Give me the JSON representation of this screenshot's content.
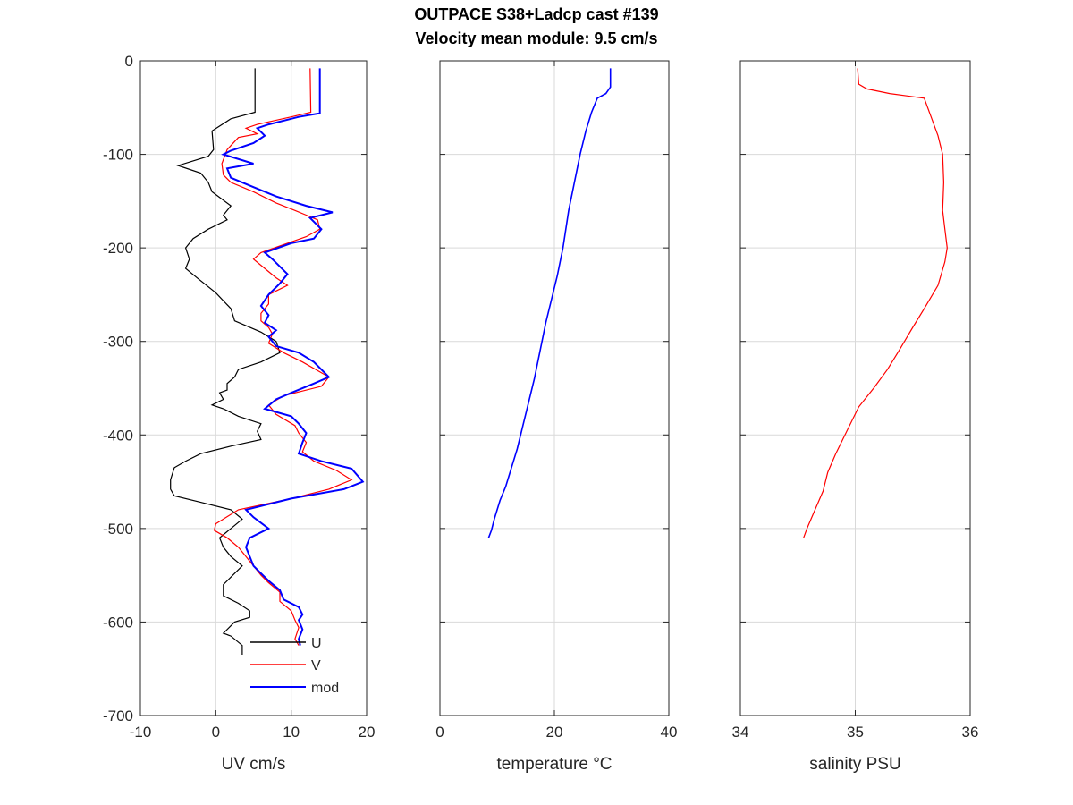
{
  "title": {
    "line1": "OUTPACE S38+Ladcp cast #139",
    "line2": "Velocity mean module:  9.5 cm/s"
  },
  "colors": {
    "U": "#000000",
    "V": "#ff0000",
    "mod": "#0000ff",
    "temperature": "#0000ff",
    "salinity": "#ff0000",
    "grid": "#d9d9d9"
  },
  "chart_data": [
    {
      "type": "line",
      "xlabel": "UV cm/s",
      "ylabel": "",
      "xlim": [
        -10,
        20
      ],
      "ylim": [
        -700,
        0
      ],
      "xticks": [
        -10,
        0,
        10,
        20
      ],
      "yticks": [
        0,
        -100,
        -200,
        -300,
        -400,
        -500,
        -600,
        -700
      ],
      "grid": true,
      "legend": "bottom-center",
      "series": [
        {
          "name": "U",
          "color": "#000000",
          "points": [
            [
              5.2,
              -8
            ],
            [
              5.2,
              -55
            ],
            [
              2,
              -62
            ],
            [
              -0.5,
              -75
            ],
            [
              -0.3,
              -95
            ],
            [
              -1,
              -102
            ],
            [
              -5,
              -112
            ],
            [
              -2,
              -120
            ],
            [
              -1,
              -130
            ],
            [
              -0.5,
              -140
            ],
            [
              2,
              -155
            ],
            [
              1,
              -165
            ],
            [
              1.5,
              -170
            ],
            [
              -1,
              -180
            ],
            [
              -3,
              -190
            ],
            [
              -4,
              -200
            ],
            [
              -3.5,
              -212
            ],
            [
              -4,
              -222
            ],
            [
              -2.5,
              -232
            ],
            [
              0,
              -248
            ],
            [
              2,
              -265
            ],
            [
              2.5,
              -278
            ],
            [
              6,
              -290
            ],
            [
              8,
              -300
            ],
            [
              8.5,
              -312
            ],
            [
              6,
              -322
            ],
            [
              3,
              -330
            ],
            [
              2.5,
              -338
            ],
            [
              1.5,
              -345
            ],
            [
              1.5,
              -352
            ],
            [
              0.5,
              -355
            ],
            [
              1,
              -362
            ],
            [
              -0.5,
              -368
            ],
            [
              1,
              -372
            ],
            [
              3,
              -380
            ],
            [
              6,
              -388
            ],
            [
              5.5,
              -396
            ],
            [
              6,
              -405
            ],
            [
              2,
              -412
            ],
            [
              -2,
              -420
            ],
            [
              -4,
              -428
            ],
            [
              -5.5,
              -435
            ],
            [
              -6,
              -448
            ],
            [
              -6,
              -458
            ],
            [
              -5.5,
              -465
            ],
            [
              -2,
              -472
            ],
            [
              2,
              -480
            ],
            [
              3.5,
              -490
            ],
            [
              2,
              -500
            ],
            [
              0.5,
              -510
            ],
            [
              1,
              -520
            ],
            [
              2,
              -530
            ],
            [
              3.5,
              -540
            ],
            [
              2.5,
              -548
            ],
            [
              1,
              -560
            ],
            [
              1,
              -572
            ],
            [
              3,
              -580
            ],
            [
              4.5,
              -588
            ],
            [
              4.5,
              -595
            ],
            [
              2.5,
              -600
            ],
            [
              1,
              -612
            ],
            [
              2,
              -615
            ],
            [
              3.5,
              -625
            ],
            [
              3.5,
              -635
            ]
          ]
        },
        {
          "name": "V",
          "color": "#ff0000",
          "points": [
            [
              12.5,
              -8
            ],
            [
              12.6,
              -55
            ],
            [
              10,
              -60
            ],
            [
              5.5,
              -68
            ],
            [
              4,
              -72
            ],
            [
              5.5,
              -78
            ],
            [
              3,
              -82
            ],
            [
              1.5,
              -95
            ],
            [
              0.8,
              -110
            ],
            [
              1,
              -122
            ],
            [
              2,
              -130
            ],
            [
              5,
              -140
            ],
            [
              8,
              -152
            ],
            [
              10.5,
              -160
            ],
            [
              12,
              -165
            ],
            [
              13.5,
              -170
            ],
            [
              13.8,
              -180
            ],
            [
              12,
              -188
            ],
            [
              9.5,
              -195
            ],
            [
              6,
              -205
            ],
            [
              5,
              -212
            ],
            [
              6.5,
              -222
            ],
            [
              8,
              -232
            ],
            [
              9.5,
              -240
            ],
            [
              7,
              -250
            ],
            [
              7,
              -260
            ],
            [
              6,
              -270
            ],
            [
              6,
              -278
            ],
            [
              7,
              -285
            ],
            [
              7.5,
              -292
            ],
            [
              7,
              -302
            ],
            [
              9,
              -312
            ],
            [
              11.5,
              -322
            ],
            [
              15,
              -338
            ],
            [
              14,
              -348
            ],
            [
              9,
              -358
            ],
            [
              7,
              -368
            ],
            [
              8,
              -378
            ],
            [
              10.5,
              -390
            ],
            [
              11,
              -398
            ],
            [
              12,
              -408
            ],
            [
              11.5,
              -418
            ],
            [
              13,
              -428
            ],
            [
              16,
              -438
            ],
            [
              18,
              -448
            ],
            [
              15,
              -458
            ],
            [
              10,
              -468
            ],
            [
              3,
              -480
            ],
            [
              0,
              -495
            ],
            [
              -0.2,
              -502
            ],
            [
              1.5,
              -510
            ],
            [
              3,
              -520
            ],
            [
              4,
              -530
            ],
            [
              5,
              -540
            ],
            [
              6,
              -550
            ],
            [
              7,
              -558
            ],
            [
              8.5,
              -568
            ],
            [
              8.5,
              -578
            ],
            [
              10,
              -588
            ],
            [
              10.5,
              -598
            ],
            [
              11,
              -606
            ],
            [
              10.5,
              -618
            ],
            [
              11,
              -625
            ]
          ]
        },
        {
          "name": "mod",
          "color": "#0000ff",
          "points": [
            [
              13.8,
              -8
            ],
            [
              13.8,
              -56
            ],
            [
              11,
              -60
            ],
            [
              7,
              -68
            ],
            [
              5.5,
              -72
            ],
            [
              6.5,
              -80
            ],
            [
              5,
              -88
            ],
            [
              2,
              -96
            ],
            [
              1,
              -100
            ],
            [
              5,
              -110
            ],
            [
              1.5,
              -115
            ],
            [
              2,
              -125
            ],
            [
              5,
              -135
            ],
            [
              8,
              -145
            ],
            [
              12,
              -155
            ],
            [
              15.5,
              -162
            ],
            [
              12.5,
              -168
            ],
            [
              14,
              -180
            ],
            [
              13,
              -190
            ],
            [
              10,
              -195
            ],
            [
              6.5,
              -205
            ],
            [
              7.5,
              -212
            ],
            [
              9.5,
              -228
            ],
            [
              8.5,
              -238
            ],
            [
              7,
              -250
            ],
            [
              6,
              -262
            ],
            [
              7,
              -272
            ],
            [
              6.5,
              -280
            ],
            [
              8,
              -288
            ],
            [
              7,
              -295
            ],
            [
              8,
              -305
            ],
            [
              11,
              -312
            ],
            [
              13,
              -322
            ],
            [
              15,
              -338
            ],
            [
              13,
              -345
            ],
            [
              10,
              -355
            ],
            [
              8,
              -362
            ],
            [
              6.5,
              -372
            ],
            [
              10,
              -380
            ],
            [
              11,
              -388
            ],
            [
              12,
              -398
            ],
            [
              11.5,
              -408
            ],
            [
              11,
              -420
            ],
            [
              14,
              -428
            ],
            [
              18,
              -436
            ],
            [
              19.5,
              -450
            ],
            [
              17,
              -458
            ],
            [
              10,
              -468
            ],
            [
              4,
              -480
            ],
            [
              5,
              -488
            ],
            [
              7,
              -500
            ],
            [
              4.5,
              -510
            ],
            [
              4,
              -520
            ],
            [
              4.5,
              -530
            ],
            [
              5,
              -540
            ],
            [
              6,
              -548
            ],
            [
              7,
              -556
            ],
            [
              8.5,
              -566
            ],
            [
              9,
              -576
            ],
            [
              11,
              -584
            ],
            [
              11.5,
              -592
            ],
            [
              11,
              -598
            ],
            [
              11.5,
              -608
            ],
            [
              11,
              -618
            ],
            [
              11.2,
              -625
            ]
          ]
        }
      ]
    },
    {
      "type": "line",
      "xlabel": "temperature °C",
      "xlim": [
        0,
        40
      ],
      "ylim": [
        -700,
        0
      ],
      "xticks": [
        0,
        20,
        40
      ],
      "yticks": [
        0,
        -100,
        -200,
        -300,
        -400,
        -500,
        -600,
        -700
      ],
      "grid": true,
      "series": [
        {
          "color": "#0000ff",
          "points": [
            [
              29.8,
              -8
            ],
            [
              29.8,
              -28
            ],
            [
              29,
              -35
            ],
            [
              27.5,
              -40
            ],
            [
              26.5,
              -55
            ],
            [
              25.5,
              -75
            ],
            [
              24.5,
              -100
            ],
            [
              23.5,
              -130
            ],
            [
              22.5,
              -160
            ],
            [
              21.5,
              -200
            ],
            [
              20.5,
              -230
            ],
            [
              19.5,
              -255
            ],
            [
              18.5,
              -280
            ],
            [
              17.5,
              -310
            ],
            [
              16.5,
              -340
            ],
            [
              15.5,
              -365
            ],
            [
              14.5,
              -390
            ],
            [
              13.5,
              -415
            ],
            [
              12.5,
              -435
            ],
            [
              11.5,
              -455
            ],
            [
              10.5,
              -470
            ],
            [
              9.5,
              -490
            ],
            [
              9,
              -502
            ],
            [
              8.5,
              -510
            ]
          ]
        }
      ]
    },
    {
      "type": "line",
      "xlabel": "salinity PSU",
      "xlim": [
        34,
        36
      ],
      "ylim": [
        -700,
        0
      ],
      "xticks": [
        34,
        35,
        36
      ],
      "yticks": [
        0,
        -100,
        -200,
        -300,
        -400,
        -500,
        -600,
        -700
      ],
      "grid": true,
      "series": [
        {
          "color": "#ff0000",
          "points": [
            [
              35.02,
              -8
            ],
            [
              35.03,
              -25
            ],
            [
              35.1,
              -30
            ],
            [
              35.3,
              -35
            ],
            [
              35.6,
              -40
            ],
            [
              35.66,
              -60
            ],
            [
              35.72,
              -80
            ],
            [
              35.76,
              -100
            ],
            [
              35.77,
              -130
            ],
            [
              35.76,
              -160
            ],
            [
              35.78,
              -180
            ],
            [
              35.8,
              -200
            ],
            [
              35.78,
              -215
            ],
            [
              35.72,
              -240
            ],
            [
              35.6,
              -265
            ],
            [
              35.5,
              -285
            ],
            [
              35.38,
              -310
            ],
            [
              35.28,
              -330
            ],
            [
              35.16,
              -350
            ],
            [
              35.03,
              -370
            ],
            [
              34.93,
              -395
            ],
            [
              34.83,
              -420
            ],
            [
              34.76,
              -440
            ],
            [
              34.72,
              -460
            ],
            [
              34.65,
              -480
            ],
            [
              34.58,
              -500
            ],
            [
              34.55,
              -510
            ]
          ]
        }
      ]
    }
  ]
}
